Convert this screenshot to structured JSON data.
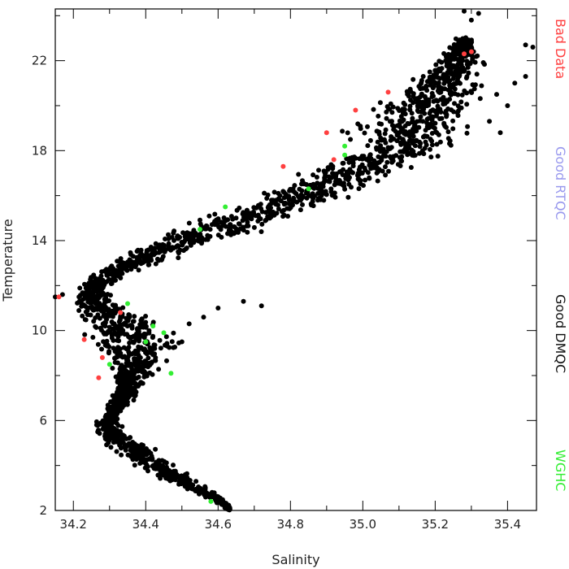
{
  "chart_data": {
    "type": "scatter",
    "title": "",
    "xlabel": "Salinity",
    "ylabel": "Temperature",
    "xlim": [
      34.15,
      35.48
    ],
    "ylim": [
      2,
      24.3
    ],
    "x_ticks": [
      "34.2",
      "34.4",
      "34.6",
      "34.8",
      "35.0",
      "35.2",
      "35.4"
    ],
    "y_ticks": [
      "2",
      "6",
      "10",
      "14",
      "18",
      "22"
    ],
    "legend_placement": "right, vertical",
    "grid": false,
    "legend": [
      {
        "name": "Bad Data",
        "color": "#ff4040"
      },
      {
        "name": "Good RTQC",
        "color": "#9999ee"
      },
      {
        "name": "Good DMQC",
        "color": "#111111"
      },
      {
        "name": "WGHC",
        "color": "#33ee33"
      }
    ],
    "series": [
      {
        "name": "Good DMQC",
        "color": "#000000",
        "profile": [
          [
            2.0,
            34.63,
            34.64
          ],
          [
            2.5,
            34.58,
            34.62
          ],
          [
            3.0,
            34.5,
            34.58
          ],
          [
            3.5,
            34.42,
            34.53
          ],
          [
            4.0,
            34.36,
            34.5
          ],
          [
            4.5,
            34.31,
            34.45
          ],
          [
            5.0,
            34.27,
            34.42
          ],
          [
            5.5,
            34.25,
            34.35
          ],
          [
            6.0,
            34.26,
            34.33
          ],
          [
            6.5,
            34.28,
            34.34
          ],
          [
            7.0,
            34.29,
            34.38
          ],
          [
            7.5,
            34.3,
            34.4
          ],
          [
            8.0,
            34.3,
            34.43
          ],
          [
            8.5,
            34.28,
            34.46
          ],
          [
            9.0,
            34.26,
            34.5
          ],
          [
            9.5,
            34.22,
            34.52
          ],
          [
            10.0,
            34.2,
            34.5
          ],
          [
            10.5,
            34.18,
            34.48
          ],
          [
            11.0,
            34.17,
            34.38
          ],
          [
            11.5,
            34.18,
            34.32
          ],
          [
            12.0,
            34.21,
            34.32
          ],
          [
            12.5,
            34.24,
            34.36
          ],
          [
            13.0,
            34.28,
            34.45
          ],
          [
            13.5,
            34.33,
            34.55
          ],
          [
            14.0,
            34.38,
            34.65
          ],
          [
            14.5,
            34.45,
            34.75
          ],
          [
            15.0,
            34.52,
            34.83
          ],
          [
            15.5,
            34.6,
            34.9
          ],
          [
            16.0,
            34.68,
            34.98
          ],
          [
            16.5,
            34.75,
            35.05
          ],
          [
            17.0,
            34.8,
            35.12
          ],
          [
            17.5,
            34.85,
            35.22
          ],
          [
            18.0,
            34.88,
            35.3
          ],
          [
            18.5,
            34.9,
            35.35
          ],
          [
            19.0,
            34.92,
            35.33
          ],
          [
            19.5,
            34.95,
            35.35
          ],
          [
            20.0,
            35.0,
            35.37
          ],
          [
            20.5,
            35.05,
            35.38
          ],
          [
            21.0,
            35.1,
            35.35
          ],
          [
            21.5,
            35.15,
            35.33
          ],
          [
            22.0,
            35.18,
            35.35
          ],
          [
            22.5,
            35.22,
            35.33
          ],
          [
            23.0,
            35.25,
            35.32
          ]
        ],
        "points": [
          [
            35.45,
            22.7
          ],
          [
            35.47,
            22.6
          ],
          [
            35.28,
            24.2
          ],
          [
            35.3,
            23.8
          ],
          [
            35.32,
            24.1
          ],
          [
            35.42,
            21.0
          ],
          [
            35.45,
            21.3
          ],
          [
            34.72,
            11.1
          ],
          [
            34.67,
            11.3
          ],
          [
            34.6,
            11.0
          ],
          [
            34.15,
            11.5
          ],
          [
            34.17,
            11.6
          ],
          [
            34.56,
            10.6
          ],
          [
            34.52,
            10.3
          ],
          [
            34.5,
            9.5
          ],
          [
            35.35,
            19.3
          ],
          [
            35.38,
            18.8
          ],
          [
            35.4,
            20.0
          ],
          [
            35.37,
            20.5
          ]
        ]
      },
      {
        "name": "Bad Data",
        "color": "#ff4040",
        "points": [
          [
            34.16,
            11.5
          ],
          [
            34.23,
            9.6
          ],
          [
            34.28,
            8.8
          ],
          [
            34.27,
            7.9
          ],
          [
            34.33,
            10.8
          ],
          [
            34.9,
            18.8
          ],
          [
            34.98,
            19.8
          ],
          [
            35.07,
            20.6
          ],
          [
            35.28,
            22.3
          ],
          [
            35.3,
            22.4
          ],
          [
            34.78,
            17.3
          ],
          [
            34.92,
            17.6
          ]
        ]
      },
      {
        "name": "WGHC",
        "color": "#33ee33",
        "points": [
          [
            34.58,
            2.4
          ],
          [
            34.4,
            9.5
          ],
          [
            34.45,
            9.9
          ],
          [
            34.42,
            10.2
          ],
          [
            34.35,
            11.2
          ],
          [
            34.62,
            15.5
          ],
          [
            34.85,
            16.3
          ],
          [
            34.95,
            18.2
          ],
          [
            34.95,
            17.8
          ],
          [
            34.55,
            14.5
          ],
          [
            34.3,
            8.5
          ],
          [
            34.47,
            8.1
          ]
        ]
      }
    ]
  }
}
